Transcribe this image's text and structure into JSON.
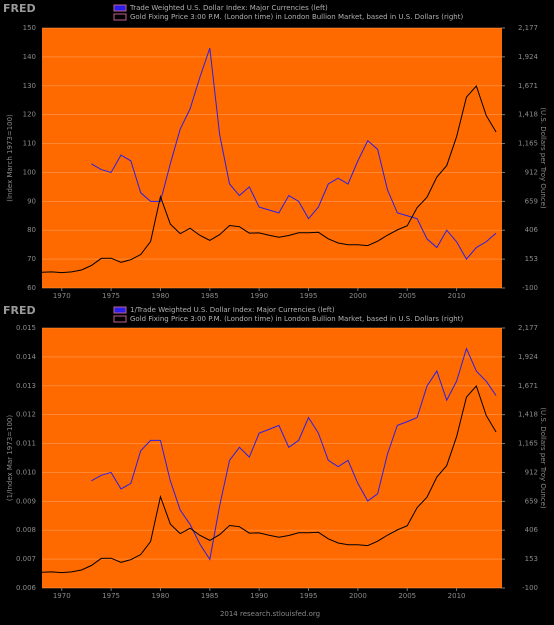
{
  "chart_data": [
    {
      "type": "line",
      "logo": "FRED",
      "y_label": "(Index March 1973=100)",
      "y2_label": "(U.S. Dollars per Troy Ounce)",
      "xlim": [
        1968,
        2014.6
      ],
      "xticks": [
        1970,
        1975,
        1980,
        1985,
        1990,
        1995,
        2000,
        2005,
        2010
      ],
      "ylim": [
        60,
        150
      ],
      "yticks": [
        60,
        70,
        80,
        90,
        100,
        110,
        120,
        130,
        140,
        150
      ],
      "y2lim": [
        -100,
        2177
      ],
      "y2ticks": [
        -100,
        153,
        406,
        659,
        912,
        {
          "value": 1165,
          "label": "1,165"
        },
        {
          "value": 1418,
          "label": "1,418"
        },
        {
          "value": 1671,
          "label": "1,671"
        },
        {
          "value": 1924,
          "label": "1,924"
        },
        {
          "value": 2177,
          "label": "2,177"
        }
      ],
      "grid": true,
      "series": [
        {
          "name": "Trade Weighted U.S. Dollar Index: Major Currencies (left)",
          "color": "#2a1fe8",
          "x": [
            1973,
            1974,
            1975,
            1976,
            1977,
            1978,
            1979,
            1980,
            1981,
            1982,
            1983,
            1984,
            1985,
            1986,
            1987,
            1988,
            1989,
            1990,
            1991,
            1992,
            1993,
            1994,
            1995,
            1996,
            1997,
            1998,
            1999,
            2000,
            2001,
            2002,
            2003,
            2004,
            2005,
            2006,
            2007,
            2008,
            2009,
            2010,
            2011,
            2012,
            2013,
            2014
          ],
          "values": [
            103,
            101,
            100,
            106,
            104,
            93,
            90,
            90,
            103,
            115,
            122,
            133,
            143,
            113,
            96,
            92,
            95,
            88,
            87,
            86,
            92,
            90,
            84,
            88,
            96,
            98,
            96,
            104,
            111,
            108,
            94,
            86,
            85,
            84,
            77,
            74,
            80,
            76,
            70,
            74,
            76,
            79
          ]
        },
        {
          "name": "Gold Fixing Price 3:00 P.M. (London time) in London Bullion Market, based in U.S. Dollars (right)",
          "color": "#000000",
          "axis": "y2",
          "x": [
            1968,
            1969,
            1970,
            1971,
            1972,
            1973,
            1974,
            1975,
            1976,
            1977,
            1978,
            1979,
            1980,
            1981,
            1982,
            1983,
            1984,
            1985,
            1986,
            1987,
            1988,
            1989,
            1990,
            1991,
            1992,
            1993,
            1994,
            1995,
            1996,
            1997,
            1998,
            1999,
            2000,
            2001,
            2002,
            2003,
            2004,
            2005,
            2006,
            2007,
            2008,
            2009,
            2010,
            2011,
            2012,
            2013,
            2014
          ],
          "values": [
            38,
            41,
            35,
            41,
            58,
            97,
            159,
            161,
            125,
            148,
            193,
            307,
            700,
            460,
            376,
            424,
            361,
            317,
            368,
            447,
            437,
            381,
            383,
            362,
            344,
            360,
            384,
            384,
            388,
            331,
            294,
            279,
            279,
            271,
            310,
            363,
            409,
            445,
            604,
            695,
            872,
            972,
            1225,
            1572,
            1669,
            1411,
            1266
          ]
        }
      ]
    },
    {
      "type": "line",
      "logo": "FRED",
      "y_label": "(1/Index Mar 1973=100)",
      "y2_label": "(U.S. Dollars per Troy Ounce)",
      "source": "2014 research.stlouisfed.org",
      "xlim": [
        1968,
        2014.6
      ],
      "xticks": [
        1970,
        1975,
        1980,
        1985,
        1990,
        1995,
        2000,
        2005,
        2010
      ],
      "ylim": [
        0.006,
        0.015
      ],
      "yticks": [
        0.006,
        0.007,
        0.008,
        0.009,
        {
          "value": 0.01,
          "label": "0.010"
        },
        0.011,
        0.012,
        0.013,
        0.014,
        0.015
      ],
      "y2lim": [
        -100,
        2177
      ],
      "y2ticks": [
        -100,
        153,
        406,
        659,
        912,
        {
          "value": 1165,
          "label": "1,165"
        },
        {
          "value": 1418,
          "label": "1,418"
        },
        {
          "value": 1671,
          "label": "1,671"
        },
        {
          "value": 1924,
          "label": "1,924"
        },
        {
          "value": 2177,
          "label": "2,177"
        }
      ],
      "grid": true,
      "series": [
        {
          "name": "1/Trade Weighted U.S. Dollar Index: Major Currencies (left)",
          "color": "#2a1fe8",
          "x": [
            1973,
            1974,
            1975,
            1976,
            1977,
            1978,
            1979,
            1980,
            1981,
            1982,
            1983,
            1984,
            1985,
            1986,
            1987,
            1988,
            1989,
            1990,
            1991,
            1992,
            1993,
            1994,
            1995,
            1996,
            1997,
            1998,
            1999,
            2000,
            2001,
            2002,
            2003,
            2004,
            2005,
            2006,
            2007,
            2008,
            2009,
            2010,
            2011,
            2012,
            2013,
            2014
          ],
          "values": [
            0.00971,
            0.0099,
            0.01,
            0.00943,
            0.00962,
            0.01075,
            0.01111,
            0.01111,
            0.00971,
            0.0087,
            0.0082,
            0.00752,
            0.00699,
            0.00885,
            0.01042,
            0.01087,
            0.01053,
            0.01136,
            0.01149,
            0.01163,
            0.01087,
            0.01111,
            0.0119,
            0.01136,
            0.01042,
            0.0102,
            0.01042,
            0.00962,
            0.00901,
            0.00926,
            0.01064,
            0.01163,
            0.01176,
            0.0119,
            0.01299,
            0.01351,
            0.0125,
            0.01316,
            0.01429,
            0.01351,
            0.01316,
            0.01266
          ]
        },
        {
          "name": "Gold Fixing Price 3:00 P.M. (London time) in London Bullion Market, based in U.S. Dollars (right)",
          "color": "#000000",
          "axis": "y2",
          "x": [
            1968,
            1969,
            1970,
            1971,
            1972,
            1973,
            1974,
            1975,
            1976,
            1977,
            1978,
            1979,
            1980,
            1981,
            1982,
            1983,
            1984,
            1985,
            1986,
            1987,
            1988,
            1989,
            1990,
            1991,
            1992,
            1993,
            1994,
            1995,
            1996,
            1997,
            1998,
            1999,
            2000,
            2001,
            2002,
            2003,
            2004,
            2005,
            2006,
            2007,
            2008,
            2009,
            2010,
            2011,
            2012,
            2013,
            2014
          ],
          "values": [
            38,
            41,
            35,
            41,
            58,
            97,
            159,
            161,
            125,
            148,
            193,
            307,
            700,
            460,
            376,
            424,
            361,
            317,
            368,
            447,
            437,
            381,
            383,
            362,
            344,
            360,
            384,
            384,
            388,
            331,
            294,
            279,
            279,
            271,
            310,
            363,
            409,
            445,
            604,
            695,
            872,
            972,
            1225,
            1572,
            1669,
            1411,
            1266
          ]
        }
      ]
    }
  ]
}
